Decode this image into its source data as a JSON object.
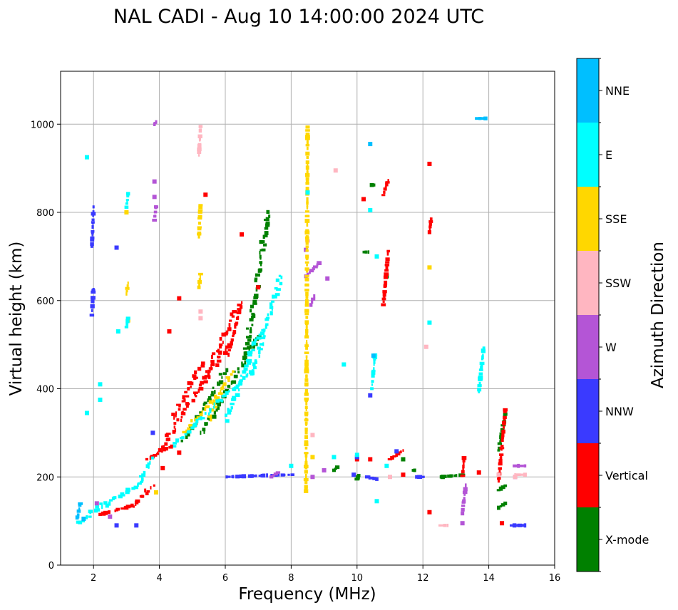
{
  "chart_data": {
    "type": "scatter",
    "title": "NAL CADI - Aug 10 14:00:00 2024 UTC",
    "xlabel": "Frequency (MHz)",
    "ylabel": "Virtual height (km)",
    "xlim": [
      1,
      16
    ],
    "ylim": [
      0,
      1120
    ],
    "xticks": [
      2,
      4,
      6,
      8,
      10,
      12,
      14,
      16
    ],
    "yticks": [
      0,
      200,
      400,
      600,
      800,
      1000
    ],
    "grid": true,
    "colorbar": {
      "label": "Azimuth Direction",
      "categories": [
        "X-mode",
        "Vertical",
        "NNW",
        "W",
        "SSW",
        "SSE",
        "E",
        "NNE"
      ],
      "colors": [
        "#008000",
        "#ff0000",
        "#3a3aff",
        "#b455d6",
        "#ffb6c1",
        "#ffd700",
        "#00ffff",
        "#00bfff"
      ]
    },
    "series": [
      {
        "name": "X-mode",
        "segments": [
          [
            4.75,
            285,
            6.0,
            440
          ],
          [
            5.3,
            300,
            7.0,
            520
          ],
          [
            6.6,
            470,
            7.3,
            800
          ],
          [
            12.55,
            200,
            13.3,
            205
          ],
          [
            14.3,
            260,
            14.5,
            340
          ],
          [
            14.3,
            130,
            14.5,
            140
          ],
          [
            14.3,
            170,
            14.5,
            180
          ],
          [
            9.3,
            215,
            9.4,
            222
          ],
          [
            10.0,
            195,
            10.05,
            203
          ],
          [
            10.2,
            710,
            10.35,
            710
          ],
          [
            10.45,
            862,
            10.5,
            862
          ],
          [
            11.7,
            215,
            11.75,
            215
          ]
        ],
        "points": [
          [
            10.9,
            655
          ],
          [
            11.4,
            240
          ],
          [
            12.6,
            200
          ]
        ]
      },
      {
        "name": "Vertical",
        "segments": [
          [
            2.2,
            115,
            3.2,
            135
          ],
          [
            3.2,
            135,
            3.8,
            180
          ],
          [
            3.6,
            240,
            4.4,
            270
          ],
          [
            4.0,
            260,
            6.1,
            500
          ],
          [
            4.4,
            330,
            5.3,
            460
          ],
          [
            5.4,
            430,
            6.4,
            590
          ],
          [
            6.1,
            480,
            6.5,
            595
          ],
          [
            10.8,
            590,
            10.95,
            715
          ],
          [
            10.8,
            840,
            10.95,
            875
          ],
          [
            14.3,
            190,
            14.5,
            350
          ],
          [
            11.0,
            240,
            11.4,
            260
          ],
          [
            12.2,
            755,
            12.25,
            785
          ],
          [
            13.2,
            200,
            13.25,
            245
          ]
        ],
        "points": [
          [
            4.3,
            530
          ],
          [
            4.6,
            605
          ],
          [
            4.6,
            255
          ],
          [
            6.5,
            750
          ],
          [
            7.0,
            630
          ],
          [
            12.2,
            910
          ],
          [
            12.2,
            120
          ],
          [
            10.2,
            830
          ],
          [
            10.0,
            240
          ],
          [
            14.4,
            95
          ],
          [
            13.7,
            210
          ],
          [
            11.4,
            205
          ],
          [
            10.4,
            240
          ],
          [
            4.1,
            220
          ],
          [
            5.4,
            840
          ]
        ]
      },
      {
        "name": "NNW",
        "segments": [
          [
            1.95,
            570,
            2.0,
            630
          ],
          [
            1.95,
            720,
            2.0,
            810
          ],
          [
            6.0,
            200,
            8.0,
            205
          ],
          [
            10.3,
            200,
            10.6,
            195
          ],
          [
            14.7,
            90,
            15.1,
            90
          ],
          [
            11.8,
            200,
            12.0,
            200
          ]
        ],
        "points": [
          [
            2.7,
            720
          ],
          [
            2.7,
            90
          ],
          [
            3.3,
            90
          ],
          [
            3.8,
            300
          ],
          [
            10.4,
            385
          ],
          [
            10.0,
            245
          ],
          [
            9.9,
            205
          ],
          [
            11.2,
            258
          ]
        ]
      },
      {
        "name": "W",
        "segments": [
          [
            3.85,
            780,
            3.9,
            815
          ],
          [
            3.85,
            1000,
            3.9,
            1005
          ],
          [
            8.45,
            655,
            8.85,
            685
          ],
          [
            8.6,
            590,
            8.7,
            610
          ],
          [
            14.8,
            225,
            15.1,
            225
          ],
          [
            13.2,
            120,
            13.3,
            180
          ],
          [
            7.4,
            200,
            7.6,
            210
          ]
        ],
        "points": [
          [
            3.85,
            835
          ],
          [
            3.85,
            870
          ],
          [
            8.45,
            715
          ],
          [
            8.65,
            200
          ],
          [
            9.0,
            215
          ],
          [
            9.1,
            650
          ],
          [
            13.2,
            95
          ],
          [
            14.8,
            200
          ],
          [
            2.1,
            140
          ],
          [
            2.5,
            110
          ]
        ]
      },
      {
        "name": "SSW",
        "segments": [
          [
            5.2,
            930,
            5.25,
            995
          ],
          [
            8.5,
            735,
            8.5,
            735
          ],
          [
            14.8,
            205,
            15.1,
            205
          ],
          [
            12.5,
            90,
            12.75,
            90
          ]
        ],
        "points": [
          [
            5.25,
            575
          ],
          [
            5.25,
            560
          ],
          [
            8.65,
            295
          ],
          [
            9.35,
            895
          ],
          [
            12.1,
            495
          ],
          [
            14.3,
            205
          ],
          [
            14.8,
            200
          ],
          [
            11.0,
            200
          ]
        ]
      },
      {
        "name": "SSE",
        "segments": [
          [
            5.2,
            745,
            5.25,
            820
          ],
          [
            8.45,
            165,
            8.5,
            995
          ],
          [
            3.0,
            615,
            3.05,
            640
          ],
          [
            5.2,
            630,
            5.25,
            660
          ],
          [
            4.75,
            300,
            5.7,
            380
          ],
          [
            5.5,
            330,
            6.2,
            440
          ]
        ],
        "points": [
          [
            3.0,
            800
          ],
          [
            12.2,
            675
          ],
          [
            3.05,
            555
          ],
          [
            3.9,
            165
          ],
          [
            8.65,
            245
          ]
        ]
      },
      {
        "name": "E",
        "segments": [
          [
            1.5,
            95,
            2.3,
            140
          ],
          [
            2.3,
            135,
            3.3,
            180
          ],
          [
            3.3,
            180,
            3.8,
            240
          ],
          [
            4.4,
            270,
            6.8,
            440
          ],
          [
            6.0,
            330,
            7.0,
            520
          ],
          [
            6.8,
            430,
            7.7,
            655
          ],
          [
            13.7,
            395,
            13.85,
            495
          ],
          [
            10.45,
            400,
            10.55,
            480
          ],
          [
            3.0,
            540,
            3.05,
            560
          ],
          [
            3.0,
            810,
            3.05,
            845
          ]
        ],
        "points": [
          [
            1.8,
            925
          ],
          [
            1.8,
            345
          ],
          [
            2.2,
            375
          ],
          [
            2.2,
            410
          ],
          [
            2.75,
            530
          ],
          [
            8.5,
            845
          ],
          [
            12.2,
            550
          ],
          [
            10.6,
            145
          ],
          [
            10.4,
            805
          ],
          [
            9.6,
            455
          ],
          [
            9.3,
            245
          ],
          [
            10.0,
            250
          ],
          [
            10.9,
            225
          ],
          [
            10.6,
            700
          ],
          [
            8.0,
            225
          ]
        ]
      },
      {
        "name": "NNE",
        "segments": [
          [
            1.5,
            105,
            1.6,
            140
          ],
          [
            13.65,
            1013,
            13.9,
            1013
          ]
        ],
        "points": [
          [
            1.7,
            105
          ],
          [
            10.4,
            955
          ],
          [
            10.5,
            475
          ]
        ]
      }
    ]
  }
}
